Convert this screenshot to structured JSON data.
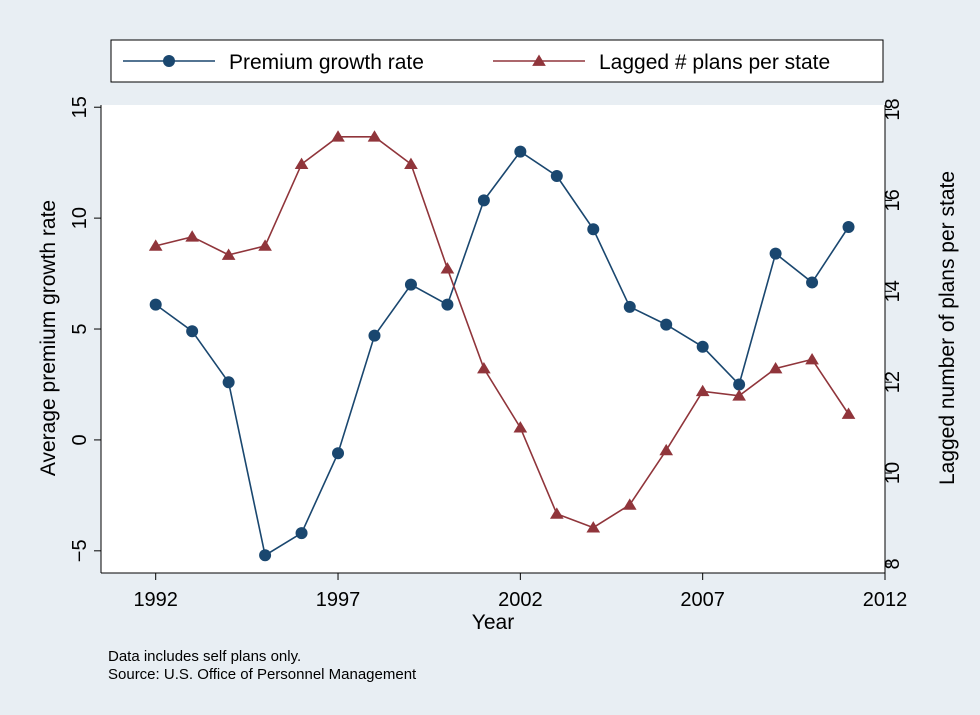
{
  "chart_data": {
    "type": "line",
    "xlabel": "Year",
    "ylabel": "Average premium growth rate",
    "y2label": "Lagged number of plans per state",
    "xlim": [
      1990.5,
      2012
    ],
    "ylim": [
      -6,
      15.1
    ],
    "y2lim": [
      7.8,
      18.1
    ],
    "x_ticks": [
      1992,
      1997,
      2002,
      2007,
      2012
    ],
    "y_ticks": [
      -5,
      0,
      5,
      10,
      15
    ],
    "y2_ticks": [
      8,
      10,
      12,
      14,
      16,
      18
    ],
    "grid": false,
    "legend_position": "top",
    "colors": {
      "background": "#e8eef3",
      "plot_area": "#ffffff",
      "premium": "#1a476f",
      "plans": "#90353b"
    },
    "x": [
      1992,
      1993,
      1994,
      1995,
      1996,
      1997,
      1998,
      1999,
      2000,
      2001,
      2002,
      2003,
      2004,
      2005,
      2006,
      2007,
      2008,
      2009,
      2010,
      2011
    ],
    "series": [
      {
        "name": "Premium growth rate",
        "axis": "left",
        "marker": "circle",
        "values": [
          6.1,
          4.9,
          2.6,
          -5.2,
          -4.2,
          -0.6,
          4.7,
          7.0,
          6.1,
          10.8,
          13.0,
          11.9,
          9.5,
          6.0,
          5.2,
          4.2,
          2.5,
          8.4,
          7.1,
          9.6
        ]
      },
      {
        "name": "Lagged # plans per state",
        "axis": "right",
        "marker": "triangle",
        "values": [
          15.0,
          15.2,
          14.8,
          15.0,
          16.8,
          17.4,
          17.4,
          16.8,
          14.5,
          12.3,
          11.0,
          9.1,
          8.8,
          9.3,
          10.5,
          11.8,
          11.7,
          12.3,
          12.5,
          11.3
        ]
      }
    ]
  },
  "notes": {
    "line1": "Data includes self plans only.",
    "line2": "Source: U.S. Office of Personnel Management"
  }
}
